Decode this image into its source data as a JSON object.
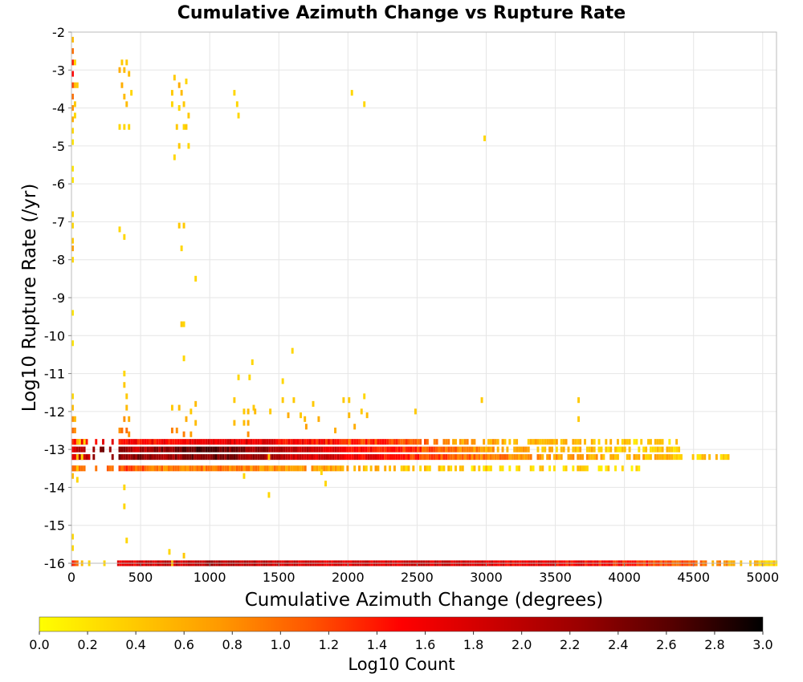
{
  "chart_data": {
    "type": "heatmap",
    "title": "Cumulative Azimuth Change vs Rupture Rate",
    "xlabel": "Cumulative Azimuth Change (degrees)",
    "ylabel": "Log10 Rupture Rate (/yr)",
    "xlim": [
      0,
      5100
    ],
    "ylim": [
      -16,
      -2
    ],
    "x_ticks": [
      "0",
      "500",
      "1000",
      "1500",
      "2000",
      "2500",
      "3000",
      "3500",
      "4000",
      "4500",
      "5000"
    ],
    "y_ticks": [
      "-2",
      "-3",
      "-4",
      "-5",
      "-6",
      "-7",
      "-8",
      "-9",
      "-10",
      "-11",
      "-12",
      "-13",
      "-14",
      "-15",
      "-16"
    ],
    "grid": true,
    "colorbar": {
      "label": "Log10 Count",
      "range": [
        0.0,
        3.0
      ],
      "ticks": [
        "0.0",
        "0.2",
        "0.4",
        "0.6",
        "0.8",
        "1.0",
        "1.2",
        "1.4",
        "1.6",
        "1.8",
        "2.0",
        "2.2",
        "2.4",
        "2.6",
        "2.8",
        "3.0"
      ],
      "colors": [
        "#ffff00",
        "#ffcc00",
        "#ff9900",
        "#ff5500",
        "#ff0000",
        "#cc0000",
        "#990000",
        "#550000",
        "#000000"
      ]
    },
    "bin_width": 17,
    "bin_height": 0.15,
    "cells": [
      [
        0,
        -2.2,
        0.5
      ],
      [
        0,
        -2.5,
        1.0
      ],
      [
        0,
        -2.8,
        1.4
      ],
      [
        0,
        -3.1,
        1.5
      ],
      [
        0,
        -3.4,
        1.2
      ],
      [
        0,
        -3.7,
        1.0
      ],
      [
        0,
        -4.0,
        0.8
      ],
      [
        0,
        -4.3,
        0.6
      ],
      [
        0,
        -4.6,
        0.3
      ],
      [
        0,
        -4.9,
        0.2
      ],
      [
        17,
        -2.8,
        0.3
      ],
      [
        17,
        -3.4,
        0.5
      ],
      [
        17,
        -3.9,
        0.4
      ],
      [
        17,
        -4.2,
        0.3
      ],
      [
        34,
        -3.4,
        0.4
      ],
      [
        0,
        -5.6,
        0.2
      ],
      [
        0,
        -5.9,
        0.2
      ],
      [
        0,
        -6.8,
        0.3
      ],
      [
        0,
        -7.1,
        0.3
      ],
      [
        0,
        -7.5,
        0.4
      ],
      [
        0,
        -7.7,
        0.7
      ],
      [
        0,
        -8.0,
        0.3
      ],
      [
        0,
        -9.4,
        0.2
      ],
      [
        0,
        -10.2,
        0.2
      ],
      [
        0,
        -11.6,
        0.3
      ],
      [
        0,
        -11.9,
        0.5
      ],
      [
        0,
        -12.2,
        0.8
      ],
      [
        0,
        -12.5,
        1.0
      ],
      [
        0,
        -12.8,
        1.3
      ],
      [
        0,
        -13.0,
        1.6
      ],
      [
        0,
        -13.2,
        1.7
      ],
      [
        0,
        -13.5,
        1.0
      ],
      [
        0,
        -13.7,
        0.5
      ],
      [
        17,
        -12.2,
        0.5
      ],
      [
        17,
        -12.5,
        0.8
      ],
      [
        17,
        -12.8,
        1.5
      ],
      [
        17,
        -13.0,
        1.8
      ],
      [
        17,
        -13.2,
        1.7
      ],
      [
        17,
        -13.5,
        1.0
      ],
      [
        34,
        -12.8,
        0.6
      ],
      [
        34,
        -13.2,
        0.5
      ],
      [
        34,
        -13.5,
        0.4
      ],
      [
        34,
        -13.8,
        0.3
      ],
      [
        51,
        -12.8,
        0.3
      ],
      [
        68,
        -13.2,
        0.3
      ],
      [
        85,
        -12.8,
        0.3
      ],
      [
        0,
        -15.3,
        0.3
      ],
      [
        0,
        -15.6,
        0.3
      ],
      [
        0,
        -16.0,
        1.4
      ],
      [
        17,
        -16.0,
        1.2
      ],
      [
        34,
        -16.0,
        1.0
      ],
      [
        68,
        -16.0,
        0.5
      ],
      [
        120,
        -16.0,
        0.3
      ],
      [
        230,
        -16.0,
        0.3
      ],
      [
        340,
        -3.0,
        0.6
      ],
      [
        357,
        -2.8,
        0.4
      ],
      [
        374,
        -3.0,
        0.5
      ],
      [
        391,
        -2.8,
        0.4
      ],
      [
        408,
        -3.1,
        0.5
      ],
      [
        425,
        -3.6,
        0.3
      ],
      [
        357,
        -3.4,
        0.6
      ],
      [
        374,
        -3.7,
        0.5
      ],
      [
        391,
        -3.9,
        0.5
      ],
      [
        374,
        -4.5,
        0.3
      ],
      [
        408,
        -4.5,
        0.3
      ],
      [
        340,
        -4.5,
        0.3
      ],
      [
        340,
        -7.2,
        0.3
      ],
      [
        374,
        -7.4,
        0.3
      ],
      [
        374,
        -11.0,
        0.3
      ],
      [
        374,
        -11.3,
        0.4
      ],
      [
        391,
        -11.6,
        0.4
      ],
      [
        391,
        -11.9,
        0.5
      ],
      [
        408,
        -12.2,
        0.6
      ],
      [
        340,
        -12.5,
        0.8
      ],
      [
        357,
        -12.5,
        1.0
      ],
      [
        374,
        -12.2,
        0.8
      ],
      [
        391,
        -12.5,
        1.0
      ],
      [
        408,
        -12.6,
        0.8
      ],
      [
        374,
        -14.0,
        0.3
      ],
      [
        374,
        -14.5,
        0.3
      ],
      [
        391,
        -15.4,
        0.3
      ],
      [
        720,
        -3.6,
        0.4
      ],
      [
        737,
        -3.2,
        0.4
      ],
      [
        771,
        -3.4,
        0.6
      ],
      [
        788,
        -3.6,
        0.5
      ],
      [
        805,
        -3.9,
        0.4
      ],
      [
        822,
        -3.3,
        0.3
      ],
      [
        839,
        -4.2,
        0.4
      ],
      [
        720,
        -3.9,
        0.3
      ],
      [
        771,
        -4.0,
        0.3
      ],
      [
        754,
        -4.5,
        0.4
      ],
      [
        805,
        -4.5,
        0.3
      ],
      [
        822,
        -4.5,
        0.4
      ],
      [
        737,
        -5.3,
        0.3
      ],
      [
        771,
        -5.0,
        0.4
      ],
      [
        839,
        -5.0,
        0.3
      ],
      [
        771,
        -7.1,
        0.4
      ],
      [
        805,
        -7.1,
        0.4
      ],
      [
        788,
        -7.7,
        0.3
      ],
      [
        890,
        -8.5,
        0.3
      ],
      [
        788,
        -9.7,
        0.4
      ],
      [
        805,
        -9.7,
        0.3
      ],
      [
        805,
        -10.6,
        0.3
      ],
      [
        720,
        -11.9,
        0.4
      ],
      [
        771,
        -11.9,
        0.5
      ],
      [
        822,
        -12.2,
        0.6
      ],
      [
        856,
        -12.0,
        0.4
      ],
      [
        890,
        -11.8,
        0.5
      ],
      [
        890,
        -12.3,
        0.5
      ],
      [
        720,
        -12.5,
        0.9
      ],
      [
        754,
        -12.5,
        0.8
      ],
      [
        805,
        -12.6,
        0.9
      ],
      [
        856,
        -12.6,
        0.7
      ],
      [
        700,
        -15.7,
        0.3
      ],
      [
        720,
        -16.0,
        0.5
      ],
      [
        805,
        -15.8,
        0.4
      ],
      [
        1200,
        -4.2,
        0.3
      ],
      [
        1170,
        -3.6,
        0.3
      ],
      [
        1190,
        -3.9,
        0.3
      ],
      [
        1200,
        -11.1,
        0.3
      ],
      [
        1240,
        -12.0,
        0.4
      ],
      [
        1240,
        -12.3,
        0.5
      ],
      [
        1170,
        -11.7,
        0.4
      ],
      [
        1170,
        -12.3,
        0.5
      ],
      [
        1280,
        -11.1,
        0.3
      ],
      [
        1270,
        -12.0,
        0.5
      ],
      [
        1270,
        -12.3,
        0.6
      ],
      [
        1270,
        -12.6,
        0.8
      ],
      [
        1300,
        -10.7,
        0.3
      ],
      [
        1310,
        -11.9,
        0.4
      ],
      [
        1320,
        -12.0,
        0.5
      ],
      [
        1240,
        -13.7,
        0.3
      ],
      [
        1420,
        -13.2,
        0.4
      ],
      [
        1420,
        -14.2,
        0.3
      ],
      [
        1430,
        -12.0,
        0.4
      ],
      [
        1520,
        -11.2,
        0.3
      ],
      [
        1520,
        -11.7,
        0.4
      ],
      [
        1560,
        -12.1,
        0.6
      ],
      [
        1590,
        -10.4,
        0.3
      ],
      [
        1600,
        -11.7,
        0.4
      ],
      [
        1650,
        -12.1,
        0.4
      ],
      [
        1680,
        -12.2,
        0.5
      ],
      [
        1690,
        -12.4,
        0.7
      ],
      [
        1740,
        -11.8,
        0.4
      ],
      [
        1780,
        -12.2,
        0.6
      ],
      [
        1800,
        -13.6,
        0.3
      ],
      [
        1830,
        -13.9,
        0.3
      ],
      [
        1900,
        -12.5,
        0.6
      ],
      [
        1960,
        -11.7,
        0.4
      ],
      [
        2000,
        -12.1,
        0.5
      ],
      [
        2000,
        -11.7,
        0.4
      ],
      [
        2090,
        -12.0,
        0.4
      ],
      [
        2110,
        -11.6,
        0.3
      ],
      [
        2130,
        -12.1,
        0.5
      ],
      [
        2040,
        -12.4,
        0.6
      ],
      [
        2000,
        -12.8,
        0.9
      ],
      [
        2020,
        -3.6,
        0.3
      ],
      [
        2110,
        -3.9,
        0.3
      ],
      [
        2980,
        -4.8,
        0.3
      ],
      [
        2480,
        -12.0,
        0.4
      ],
      [
        2960,
        -11.7,
        0.4
      ],
      [
        3660,
        -11.7,
        0.4
      ],
      [
        3660,
        -12.2,
        0.4
      ]
    ],
    "bands": [
      {
        "y": -12.8,
        "x_from": 0,
        "x_to": 4400,
        "gradient": [
          [
            0,
            1.5
          ],
          [
            700,
            1.5
          ],
          [
            1200,
            1.7
          ],
          [
            1700,
            1.5
          ],
          [
            2300,
            1.2
          ],
          [
            2800,
            0.7
          ],
          [
            3300,
            0.5
          ],
          [
            4400,
            0.3
          ]
        ],
        "sparse_after": 2500
      },
      {
        "y": -13.0,
        "x_from": 0,
        "x_to": 4400,
        "gradient": [
          [
            0,
            2.0
          ],
          [
            350,
            2.6
          ],
          [
            450,
            2.0
          ],
          [
            700,
            2.4
          ],
          [
            900,
            2.6
          ],
          [
            1200,
            2.4
          ],
          [
            1600,
            2.0
          ],
          [
            2000,
            1.6
          ],
          [
            2500,
            1.2
          ],
          [
            3000,
            0.7
          ],
          [
            3500,
            0.5
          ],
          [
            4400,
            0.3
          ]
        ],
        "sparse_after": 2900
      },
      {
        "y": -13.2,
        "x_from": 0,
        "x_to": 4760,
        "gradient": [
          [
            0,
            1.9
          ],
          [
            350,
            2.4
          ],
          [
            700,
            2.2
          ],
          [
            1000,
            2.5
          ],
          [
            1500,
            2.0
          ],
          [
            2000,
            1.7
          ],
          [
            2500,
            1.3
          ],
          [
            3000,
            0.9
          ],
          [
            3500,
            0.7
          ],
          [
            4000,
            0.6
          ],
          [
            4760,
            0.3
          ]
        ],
        "sparse_after": 3300
      },
      {
        "y": -13.5,
        "x_from": 0,
        "x_to": 4100,
        "gradient": [
          [
            0,
            1.0
          ],
          [
            400,
            1.2
          ],
          [
            700,
            0.8
          ],
          [
            1000,
            0.9
          ],
          [
            1500,
            0.8
          ],
          [
            2000,
            0.6
          ],
          [
            2500,
            0.4
          ],
          [
            3000,
            0.3
          ],
          [
            4100,
            0.3
          ]
        ],
        "sparse_after": 1600
      },
      {
        "y": -16.0,
        "x_from": 330,
        "x_to": 5100,
        "gradient": [
          [
            330,
            1.6
          ],
          [
            800,
            1.9
          ],
          [
            1000,
            2.1
          ],
          [
            1500,
            1.8
          ],
          [
            2000,
            1.7
          ],
          [
            2500,
            1.8
          ],
          [
            3000,
            1.7
          ],
          [
            3500,
            1.6
          ],
          [
            4000,
            1.4
          ],
          [
            4500,
            1.0
          ],
          [
            4800,
            0.6
          ],
          [
            5100,
            0.3
          ]
        ],
        "sparse_after": 4500
      }
    ]
  }
}
